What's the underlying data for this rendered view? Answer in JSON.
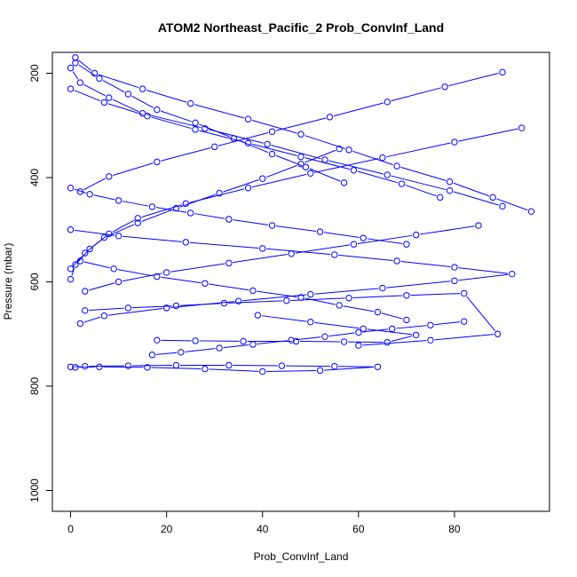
{
  "chart_data": {
    "type": "line",
    "title": "ATOM2 Northeast_Pacific_2 Prob_ConvInf_Land",
    "xlabel": "Prob_ConvInf_Land",
    "ylabel": "Pressure (mbar)",
    "xlim": [
      -3.8,
      99.8
    ],
    "ylim": [
      1040,
      160
    ],
    "y_reversed": true,
    "x_ticks": [
      0,
      20,
      40,
      60,
      80
    ],
    "y_ticks": [
      200,
      400,
      600,
      800,
      1000
    ],
    "grid": false,
    "legend": "none",
    "marker": "open-circle",
    "color": "#0000ff",
    "series": [
      {
        "x": [
          0,
          2,
          8,
          15,
          28,
          41,
          53,
          66,
          79,
          90
        ],
        "y": [
          190,
          218,
          247,
          277,
          306,
          336,
          366,
          395,
          425,
          455
        ]
      },
      {
        "x": [
          94,
          80,
          65,
          50,
          37,
          24,
          14,
          8,
          4,
          1,
          0
        ],
        "y": [
          305,
          332,
          362,
          392,
          420,
          450,
          478,
          508,
          537,
          567,
          595
        ]
      },
      {
        "x": [
          1,
          5,
          15,
          25,
          37,
          48,
          58,
          68,
          79,
          88,
          96
        ],
        "y": [
          170,
          200,
          230,
          258,
          288,
          317,
          347,
          378,
          408,
          438,
          465
        ]
      },
      {
        "x": [
          0,
          10,
          24,
          40,
          55,
          68,
          80,
          92,
          80,
          65,
          50,
          35,
          20,
          7,
          2
        ],
        "y": [
          500,
          512,
          524,
          536,
          548,
          560,
          572,
          585,
          598,
          612,
          624,
          637,
          650,
          665,
          680
        ]
      },
      {
        "x": [
          3,
          12,
          22,
          32,
          45,
          58,
          70,
          82,
          89,
          75,
          60
        ],
        "y": [
          655,
          650,
          646,
          641,
          636,
          631,
          626,
          622,
          700,
          712,
          722
        ]
      },
      {
        "x": [
          0,
          3,
          12,
          22,
          33,
          44,
          55,
          64,
          52,
          40,
          28,
          16,
          6,
          1
        ],
        "y": [
          763,
          762,
          761,
          760,
          760,
          761,
          762,
          763,
          770,
          772,
          767,
          764,
          763,
          764
        ]
      },
      {
        "x": [
          17,
          23,
          31,
          38,
          46,
          53,
          60,
          67,
          75,
          82
        ],
        "y": [
          740,
          735,
          727,
          720,
          712,
          705,
          697,
          690,
          683,
          676
        ]
      },
      {
        "x": [
          1,
          6,
          12,
          18,
          26,
          34,
          42,
          49,
          57
        ],
        "y": [
          180,
          210,
          240,
          270,
          295,
          325,
          355,
          380,
          410
        ]
      },
      {
        "x": [
          0,
          4,
          10,
          17,
          25,
          33,
          42,
          52,
          61,
          70
        ],
        "y": [
          420,
          432,
          444,
          456,
          468,
          480,
          492,
          504,
          516,
          528
        ]
      },
      {
        "x": [
          56,
          48,
          40,
          31,
          22,
          14,
          7,
          3,
          0
        ],
        "y": [
          345,
          374,
          402,
          430,
          459,
          487,
          515,
          545,
          575
        ]
      },
      {
        "x": [
          90,
          78,
          66,
          54,
          42,
          30,
          18,
          8,
          2
        ],
        "y": [
          198,
          226,
          255,
          284,
          312,
          341,
          370,
          398,
          427
        ]
      },
      {
        "x": [
          2,
          9,
          18,
          28,
          38,
          48,
          56,
          64,
          70
        ],
        "y": [
          560,
          575,
          590,
          603,
          617,
          630,
          645,
          658,
          673
        ]
      },
      {
        "x": [
          18,
          26,
          36,
          47,
          57,
          66,
          72,
          61,
          50,
          39
        ],
        "y": [
          712,
          713,
          714,
          714,
          715,
          716,
          702,
          690,
          677,
          664
        ]
      },
      {
        "x": [
          0,
          7,
          16,
          26,
          37,
          48,
          59,
          69,
          77
        ],
        "y": [
          230,
          256,
          282,
          308,
          334,
          360,
          386,
          412,
          438
        ]
      },
      {
        "x": [
          85,
          72,
          59,
          46,
          33,
          20,
          10,
          3
        ],
        "y": [
          492,
          510,
          528,
          546,
          564,
          582,
          600,
          618
        ]
      }
    ]
  }
}
